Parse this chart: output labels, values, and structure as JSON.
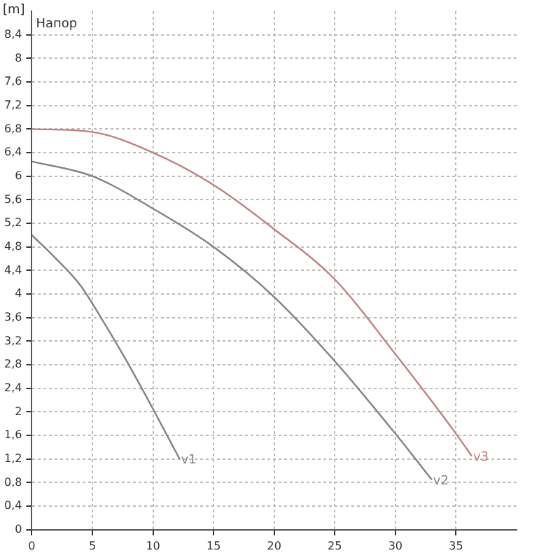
{
  "chart_data": {
    "type": "line",
    "title": "Напор",
    "ylabel": "[m]",
    "xlim": [
      0,
      40
    ],
    "xticks": [
      0,
      5,
      10,
      15,
      20,
      25,
      30,
      35
    ],
    "ylim": [
      0,
      8.8
    ],
    "yticks": [
      0,
      {
        "value": 0.4,
        "label": "0,4"
      },
      {
        "value": 0.8,
        "label": "0,8"
      },
      {
        "value": 1.2,
        "label": "1,2"
      },
      {
        "value": 1.6,
        "label": "1,6"
      },
      2,
      {
        "value": 2.4,
        "label": "2,4"
      },
      {
        "value": 2.8,
        "label": "2,8"
      },
      {
        "value": 3.2,
        "label": "3,2"
      },
      {
        "value": 3.6,
        "label": "3,6"
      },
      4,
      {
        "value": 4.4,
        "label": "4,4"
      },
      {
        "value": 4.8,
        "label": "4,8"
      },
      {
        "value": 5.2,
        "label": "5,2"
      },
      {
        "value": 5.6,
        "label": "5,6"
      },
      6,
      {
        "value": 6.4,
        "label": "6,4"
      },
      {
        "value": 6.8,
        "label": "6,8"
      },
      {
        "value": 7.2,
        "label": "7,2"
      },
      {
        "value": 7.6,
        "label": "7,6"
      },
      8,
      {
        "value": 8.4,
        "label": "8,4"
      }
    ],
    "grid": true,
    "marker": "none",
    "line_style": "solid",
    "series": [
      {
        "name": "v1",
        "color": "#8a7f80",
        "x": [
          0,
          2,
          4,
          6,
          8,
          10,
          12.2
        ],
        "values": [
          5.0,
          4.6,
          4.15,
          3.5,
          2.8,
          2.05,
          1.2
        ]
      },
      {
        "name": "v2",
        "color": "#8a7f80",
        "x": [
          0,
          5,
          10,
          15,
          20,
          25,
          30,
          33
        ],
        "values": [
          6.25,
          6.0,
          5.45,
          4.8,
          3.95,
          2.86,
          1.63,
          0.85
        ]
      },
      {
        "name": "v3",
        "color": "#c08080",
        "x": [
          0,
          5,
          10,
          15,
          20,
          25,
          30,
          35,
          36.3
        ],
        "values": [
          6.8,
          6.75,
          6.4,
          5.85,
          5.1,
          4.25,
          2.98,
          1.63,
          1.25
        ]
      }
    ]
  }
}
